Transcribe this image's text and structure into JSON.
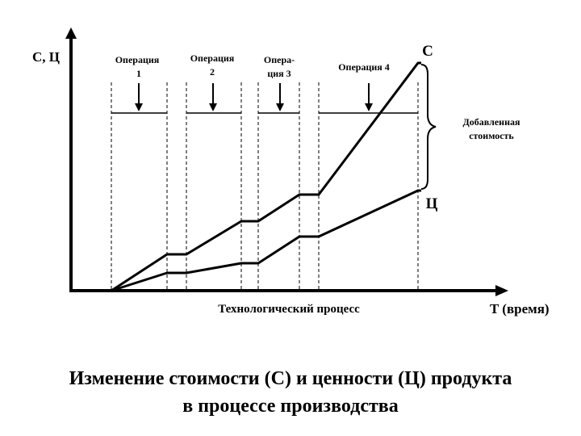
{
  "axes": {
    "y_label": "С, Ц",
    "x_label": "T (время)"
  },
  "operations": [
    {
      "lines": [
        "Операция",
        "1"
      ]
    },
    {
      "lines": [
        "Операция",
        "2"
      ]
    },
    {
      "lines": [
        "Опера-",
        "ция 3"
      ]
    },
    {
      "lines": [
        "Операция  4"
      ]
    }
  ],
  "labels": {
    "cost_curve": "С",
    "value_curve": "Ц",
    "added_value": [
      "Добавленная",
      "стоимость"
    ],
    "process": "Технологический процесс"
  },
  "caption": {
    "line1": "Изменение стоимости (С) и ценности (Ц) продукта",
    "line2": "в процессе производства"
  }
}
